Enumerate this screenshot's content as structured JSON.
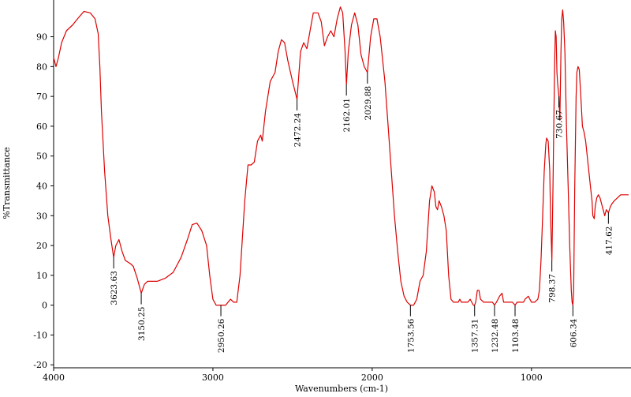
{
  "chart_data": {
    "type": "line",
    "title": "",
    "xlabel": "Wavenumbers (cm-1)",
    "ylabel": "%Transmittance",
    "xlim": [
      4000,
      390
    ],
    "ylim": [
      -21,
      101
    ],
    "x_ticks": [
      {
        "value": 4000,
        "label": "4000"
      },
      {
        "value": 3000,
        "label": "3000"
      },
      {
        "value": 2000,
        "label": "2000"
      },
      {
        "value": 1000,
        "label": "1000"
      }
    ],
    "y_ticks": [
      {
        "value": 90,
        "label": "90"
      },
      {
        "value": 80,
        "label": "80"
      },
      {
        "value": 70,
        "label": "70"
      },
      {
        "value": 60,
        "label": "60"
      },
      {
        "value": 50,
        "label": "50"
      },
      {
        "value": 40,
        "label": "40"
      },
      {
        "value": 30,
        "label": "30"
      },
      {
        "value": 20,
        "label": "20"
      },
      {
        "value": 10,
        "label": "10"
      },
      {
        "value": 0,
        "label": "0"
      },
      {
        "value": -10,
        "label": "-10"
      },
      {
        "value": -20,
        "label": "-20"
      }
    ],
    "series": [
      {
        "color": "#dd0000",
        "points": [
          [
            4000,
            83
          ],
          [
            3985,
            80
          ],
          [
            3970,
            83
          ],
          [
            3950,
            88
          ],
          [
            3920,
            92
          ],
          [
            3880,
            94
          ],
          [
            3850,
            96
          ],
          [
            3810,
            98.5
          ],
          [
            3770,
            98
          ],
          [
            3740,
            96
          ],
          [
            3720,
            91
          ],
          [
            3710,
            80
          ],
          [
            3700,
            65
          ],
          [
            3680,
            45
          ],
          [
            3660,
            30
          ],
          [
            3640,
            22
          ],
          [
            3623,
            16
          ],
          [
            3610,
            20
          ],
          [
            3590,
            22
          ],
          [
            3570,
            18
          ],
          [
            3550,
            15
          ],
          [
            3520,
            14
          ],
          [
            3500,
            13
          ],
          [
            3475,
            9
          ],
          [
            3450,
            4
          ],
          [
            3430,
            7
          ],
          [
            3410,
            8
          ],
          [
            3380,
            8
          ],
          [
            3350,
            8
          ],
          [
            3300,
            9
          ],
          [
            3250,
            11
          ],
          [
            3200,
            16
          ],
          [
            3160,
            22
          ],
          [
            3130,
            27
          ],
          [
            3100,
            27.5
          ],
          [
            3070,
            25
          ],
          [
            3040,
            20
          ],
          [
            3020,
            10
          ],
          [
            3000,
            2
          ],
          [
            2980,
            0
          ],
          [
            2950,
            0
          ],
          [
            2920,
            0
          ],
          [
            2890,
            2
          ],
          [
            2870,
            1
          ],
          [
            2850,
            1
          ],
          [
            2830,
            10
          ],
          [
            2800,
            35
          ],
          [
            2780,
            47
          ],
          [
            2760,
            47
          ],
          [
            2740,
            48
          ],
          [
            2720,
            55
          ],
          [
            2700,
            57
          ],
          [
            2690,
            55
          ],
          [
            2670,
            65
          ],
          [
            2640,
            75
          ],
          [
            2610,
            78
          ],
          [
            2590,
            85
          ],
          [
            2570,
            89
          ],
          [
            2550,
            88
          ],
          [
            2530,
            82
          ],
          [
            2500,
            75
          ],
          [
            2472,
            69
          ],
          [
            2450,
            85
          ],
          [
            2430,
            88
          ],
          [
            2410,
            86
          ],
          [
            2390,
            92
          ],
          [
            2370,
            98
          ],
          [
            2340,
            98
          ],
          [
            2320,
            95
          ],
          [
            2300,
            87
          ],
          [
            2280,
            90
          ],
          [
            2260,
            92
          ],
          [
            2240,
            90
          ],
          [
            2220,
            96
          ],
          [
            2200,
            100
          ],
          [
            2185,
            98
          ],
          [
            2170,
            85
          ],
          [
            2162,
            74
          ],
          [
            2150,
            85
          ],
          [
            2130,
            94
          ],
          [
            2110,
            98
          ],
          [
            2090,
            94
          ],
          [
            2070,
            84
          ],
          [
            2050,
            80
          ],
          [
            2030,
            78
          ],
          [
            2010,
            90
          ],
          [
            1990,
            96
          ],
          [
            1970,
            96
          ],
          [
            1950,
            90
          ],
          [
            1920,
            75
          ],
          [
            1900,
            60
          ],
          [
            1880,
            45
          ],
          [
            1860,
            30
          ],
          [
            1840,
            18
          ],
          [
            1820,
            8
          ],
          [
            1800,
            3
          ],
          [
            1780,
            1
          ],
          [
            1760,
            0
          ],
          [
            1740,
            0
          ],
          [
            1720,
            2
          ],
          [
            1700,
            8
          ],
          [
            1680,
            10
          ],
          [
            1660,
            18
          ],
          [
            1640,
            35
          ],
          [
            1625,
            40
          ],
          [
            1610,
            38
          ],
          [
            1600,
            33
          ],
          [
            1590,
            32
          ],
          [
            1580,
            35
          ],
          [
            1565,
            33
          ],
          [
            1550,
            30
          ],
          [
            1535,
            25
          ],
          [
            1520,
            10
          ],
          [
            1505,
            2
          ],
          [
            1490,
            1
          ],
          [
            1470,
            1
          ],
          [
            1460,
            1
          ],
          [
            1450,
            2
          ],
          [
            1440,
            1
          ],
          [
            1420,
            1
          ],
          [
            1400,
            1
          ],
          [
            1385,
            2
          ],
          [
            1375,
            1
          ],
          [
            1365,
            0
          ],
          [
            1357,
            0
          ],
          [
            1350,
            1
          ],
          [
            1340,
            5
          ],
          [
            1330,
            5
          ],
          [
            1320,
            2
          ],
          [
            1300,
            1
          ],
          [
            1280,
            1
          ],
          [
            1260,
            1
          ],
          [
            1245,
            1
          ],
          [
            1232,
            0
          ],
          [
            1220,
            1
          ],
          [
            1200,
            3
          ],
          [
            1185,
            4
          ],
          [
            1175,
            1
          ],
          [
            1160,
            1
          ],
          [
            1140,
            1
          ],
          [
            1120,
            1
          ],
          [
            1103,
            0
          ],
          [
            1090,
            1
          ],
          [
            1070,
            1
          ],
          [
            1050,
            1
          ],
          [
            1040,
            2
          ],
          [
            1020,
            3
          ],
          [
            1010,
            2
          ],
          [
            1000,
            1
          ],
          [
            980,
            1
          ],
          [
            960,
            2
          ],
          [
            950,
            5
          ],
          [
            940,
            15
          ],
          [
            930,
            30
          ],
          [
            920,
            45
          ],
          [
            910,
            54
          ],
          [
            905,
            56
          ],
          [
            895,
            55
          ],
          [
            885,
            45
          ],
          [
            880,
            30
          ],
          [
            872,
            15
          ],
          [
            865,
            40
          ],
          [
            855,
            80
          ],
          [
            850,
            92
          ],
          [
            845,
            90
          ],
          [
            840,
            78
          ],
          [
            835,
            74
          ],
          [
            828,
            70
          ],
          [
            822,
            62
          ],
          [
            815,
            85
          ],
          [
            810,
            96
          ],
          [
            804,
            99
          ],
          [
            798,
            95
          ],
          [
            790,
            85
          ],
          [
            780,
            60
          ],
          [
            770,
            40
          ],
          [
            760,
            20
          ],
          [
            750,
            5
          ],
          [
            745,
            1
          ],
          [
            740,
            0
          ],
          [
            735,
            5
          ],
          [
            728,
            40
          ],
          [
            720,
            70
          ],
          [
            715,
            78
          ],
          [
            708,
            80
          ],
          [
            700,
            79
          ],
          [
            690,
            70
          ],
          [
            680,
            60
          ],
          [
            670,
            58
          ],
          [
            660,
            55
          ],
          [
            650,
            50
          ],
          [
            640,
            45
          ],
          [
            630,
            40
          ],
          [
            620,
            35
          ],
          [
            615,
            30
          ],
          [
            606,
            29
          ],
          [
            600,
            33
          ],
          [
            590,
            36
          ],
          [
            580,
            37
          ],
          [
            570,
            36
          ],
          [
            560,
            34
          ],
          [
            550,
            32
          ],
          [
            540,
            30
          ],
          [
            530,
            32
          ],
          [
            517,
            31
          ],
          [
            505,
            33
          ],
          [
            495,
            34
          ],
          [
            480,
            35
          ],
          [
            460,
            36
          ],
          [
            440,
            37
          ],
          [
            420,
            37
          ],
          [
            390,
            37
          ]
        ]
      }
    ],
    "annotations": [
      {
        "label": "3623.63",
        "x": 3623,
        "y": 16
      },
      {
        "label": "3150.25",
        "x": 3450,
        "y": 4
      },
      {
        "label": "2950.26",
        "x": 2950,
        "y": 0
      },
      {
        "label": "2472.24",
        "x": 2472,
        "y": 69
      },
      {
        "label": "2162.01",
        "x": 2162,
        "y": 74
      },
      {
        "label": "2029.88",
        "x": 2030,
        "y": 78
      },
      {
        "label": "1753.56",
        "x": 1760,
        "y": 0
      },
      {
        "label": "1357.31",
        "x": 1357,
        "y": 0
      },
      {
        "label": "1232.48",
        "x": 1232,
        "y": 0
      },
      {
        "label": "1103.48",
        "x": 1103,
        "y": 0
      },
      {
        "label": "798.37",
        "x": 872,
        "y": 15
      },
      {
        "label": "730.67",
        "x": 828,
        "y": 70
      },
      {
        "label": "606.34",
        "x": 740,
        "y": 0
      },
      {
        "label": "417.62",
        "x": 517,
        "y": 31
      }
    ]
  }
}
